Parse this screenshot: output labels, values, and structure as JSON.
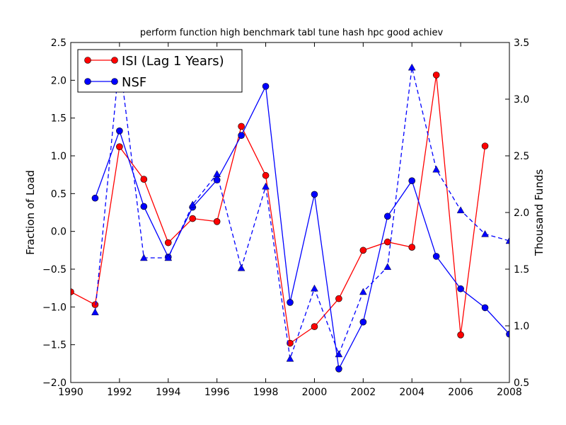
{
  "chart_data": {
    "type": "line",
    "title": "perform function high benchmark tabl tune hash hpc good achiev",
    "xlabel": "",
    "ylabel": "Fraction of Load",
    "y2label": "Thousand Funds",
    "xlim": [
      1990,
      2008
    ],
    "ylim": [
      -2.0,
      2.5
    ],
    "y2lim": [
      0.5,
      3.5
    ],
    "xticks": [
      1990,
      1992,
      1994,
      1996,
      1998,
      2000,
      2002,
      2004,
      2006,
      2008
    ],
    "yticks": [
      "−2.0",
      "−1.5",
      "−1.0",
      "−0.5",
      "0.0",
      "0.5",
      "1.0",
      "1.5",
      "2.0",
      "2.5"
    ],
    "y2ticks": [
      "0.5",
      "1.0",
      "1.5",
      "2.0",
      "2.5",
      "3.0",
      "3.5"
    ],
    "legend_position": "top-left",
    "grid": false,
    "series": [
      {
        "name": "ISI (Lag 1 Years)",
        "axis": "left",
        "color": "#ff0000",
        "style": "solid",
        "marker": "circle",
        "x": [
          1990,
          1991,
          1992,
          1993,
          1994,
          1995,
          1996,
          1997,
          1998,
          1999,
          2000,
          2001,
          2002,
          2003,
          2004,
          2005,
          2006,
          2007
        ],
        "y": [
          -0.8,
          -0.97,
          1.12,
          0.69,
          -0.15,
          0.17,
          0.13,
          1.39,
          0.74,
          -1.48,
          -1.26,
          -0.89,
          -0.25,
          -0.14,
          -0.21,
          2.07,
          -1.37,
          1.13
        ]
      },
      {
        "name": "NSF",
        "axis": "left",
        "color": "#0000ff",
        "style": "solid",
        "marker": "circle",
        "x": [
          1991,
          1992,
          1993,
          1994,
          1995,
          1996,
          1997,
          1998,
          1999,
          2000,
          2001,
          2002,
          2003,
          2004,
          2005,
          2006,
          2007,
          2008
        ],
        "y": [
          0.44,
          1.33,
          0.33,
          -0.34,
          0.32,
          0.68,
          1.27,
          1.92,
          -0.94,
          0.49,
          -1.82,
          -1.2,
          0.2,
          0.67,
          -0.33,
          -0.76,
          -1.01,
          -1.36
        ]
      },
      {
        "name": "",
        "axis": "right",
        "color": "#0000ff",
        "style": "dashed",
        "marker": "triangle",
        "x": [
          1991,
          1992,
          1993,
          1994,
          1995,
          1996,
          1997,
          1998,
          1999,
          2000,
          2001,
          2002,
          2003,
          2004,
          2005,
          2006,
          2007,
          2008
        ],
        "y": [
          1.12,
          3.35,
          1.6,
          1.6,
          2.07,
          2.34,
          1.51,
          2.23,
          0.71,
          1.33,
          0.75,
          1.3,
          1.52,
          3.28,
          2.38,
          2.02,
          1.81,
          1.75
        ]
      }
    ]
  }
}
